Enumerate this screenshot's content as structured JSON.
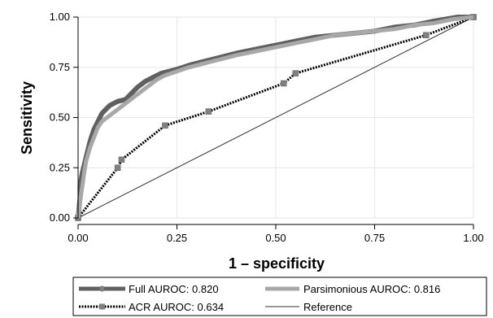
{
  "chart_data": {
    "type": "line",
    "title": "",
    "xlabel": "1 – specificity",
    "ylabel": "Sensitivity",
    "xlim": [
      0,
      1
    ],
    "ylim": [
      0,
      1
    ],
    "x_ticks": [
      0,
      0.25,
      0.5,
      0.75,
      1
    ],
    "y_ticks": [
      0,
      0.25,
      0.5,
      0.75,
      1
    ],
    "x_tick_labels": [
      "0.00",
      "0.25",
      "0.50",
      "0.75",
      "1.00"
    ],
    "y_tick_labels": [
      "0.00",
      "0.25",
      "0.50",
      "0.75",
      "1.00"
    ],
    "grid": true,
    "legend_position": "bottom",
    "series": [
      {
        "name": "Full AUROC: 0.820",
        "color": "#606060",
        "x": [
          0,
          0.005,
          0.005,
          0.01,
          0.02,
          0.03,
          0.04,
          0.05,
          0.06,
          0.07,
          0.08,
          0.1,
          0.12,
          0.13,
          0.15,
          0.17,
          0.19,
          0.21,
          0.23,
          0.25,
          0.28,
          0.32,
          0.36,
          0.4,
          0.45,
          0.5,
          0.55,
          0.6,
          0.65,
          0.7,
          0.75,
          0.8,
          0.85,
          0.9,
          0.93,
          0.96,
          1.0
        ],
        "y": [
          0,
          0.1,
          0.16,
          0.22,
          0.3,
          0.38,
          0.44,
          0.48,
          0.52,
          0.54,
          0.56,
          0.58,
          0.59,
          0.61,
          0.65,
          0.68,
          0.7,
          0.72,
          0.73,
          0.74,
          0.76,
          0.78,
          0.8,
          0.82,
          0.84,
          0.86,
          0.88,
          0.9,
          0.91,
          0.92,
          0.93,
          0.95,
          0.96,
          0.98,
          0.99,
          1.0,
          1.0
        ]
      },
      {
        "name": "Parsimonious AUROC: 0.816",
        "color": "#a8a8a8",
        "x": [
          0,
          0.005,
          0.01,
          0.015,
          0.02,
          0.03,
          0.04,
          0.05,
          0.06,
          0.08,
          0.1,
          0.12,
          0.14,
          0.16,
          0.18,
          0.2,
          0.22,
          0.25,
          0.28,
          0.32,
          0.36,
          0.4,
          0.45,
          0.5,
          0.55,
          0.6,
          0.65,
          0.7,
          0.75,
          0.8,
          0.85,
          0.9,
          0.95,
          1.0
        ],
        "y": [
          0,
          0.08,
          0.15,
          0.22,
          0.28,
          0.35,
          0.4,
          0.45,
          0.48,
          0.51,
          0.54,
          0.57,
          0.6,
          0.63,
          0.66,
          0.69,
          0.71,
          0.73,
          0.75,
          0.77,
          0.79,
          0.81,
          0.83,
          0.85,
          0.87,
          0.89,
          0.91,
          0.92,
          0.93,
          0.94,
          0.96,
          0.97,
          0.99,
          1.0
        ]
      },
      {
        "name": "ACR AUROC: 0.634",
        "color": "#000000",
        "x": [
          0,
          0.1,
          0.11,
          0.22,
          0.33,
          0.52,
          0.55,
          0.88,
          1.0
        ],
        "y": [
          0,
          0.25,
          0.29,
          0.46,
          0.53,
          0.67,
          0.72,
          0.91,
          1.0
        ]
      },
      {
        "name": "Reference",
        "color": "#303030",
        "x": [
          0,
          1
        ],
        "y": [
          0,
          1
        ]
      }
    ]
  }
}
